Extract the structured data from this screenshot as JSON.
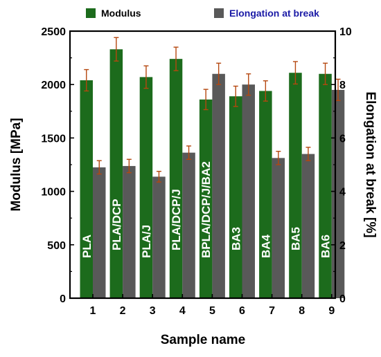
{
  "chart_data": {
    "type": "bar",
    "xlabel": "Sample name",
    "ylabel": "Modulus [MPa]",
    "y2label": "Elongation at break [%]",
    "x_ticks": [
      "1",
      "2",
      "3",
      "4",
      "5",
      "6",
      "7",
      "8",
      "9"
    ],
    "categories": [
      "PLA",
      "PLA/DCP",
      "PLA/J",
      "PLA/DCP/J",
      "BPLA/DCP/J/BA2",
      "BA3",
      "BA4",
      "BA5",
      "BA6"
    ],
    "ylim": [
      0,
      2500
    ],
    "y_ticks": [
      "0",
      "500",
      "1000",
      "1500",
      "2000",
      "2500"
    ],
    "y2lim": [
      0,
      10
    ],
    "y2_ticks": [
      "0",
      "2",
      "4",
      "6",
      "8",
      "10"
    ],
    "legend_position": "top",
    "grid": false,
    "series": [
      {
        "name": "Modulus",
        "axis": "left",
        "color": "#1c6b1c",
        "legend_text_color": "#000000",
        "values": [
          2040,
          2330,
          2070,
          2240,
          1860,
          1890,
          1940,
          2110,
          2100
        ],
        "errors": [
          100,
          110,
          105,
          110,
          95,
          95,
          95,
          105,
          100
        ]
      },
      {
        "name": "Elongation at break",
        "axis": "right",
        "color": "#595959",
        "legend_text_color": "#1a1aa6",
        "values": [
          4.9,
          4.95,
          4.55,
          5.45,
          8.4,
          8.0,
          5.25,
          5.4,
          7.8
        ],
        "errors": [
          0.25,
          0.25,
          0.2,
          0.25,
          0.4,
          0.4,
          0.25,
          0.25,
          0.4
        ]
      }
    ],
    "error_bar_color": "#b5470f"
  }
}
